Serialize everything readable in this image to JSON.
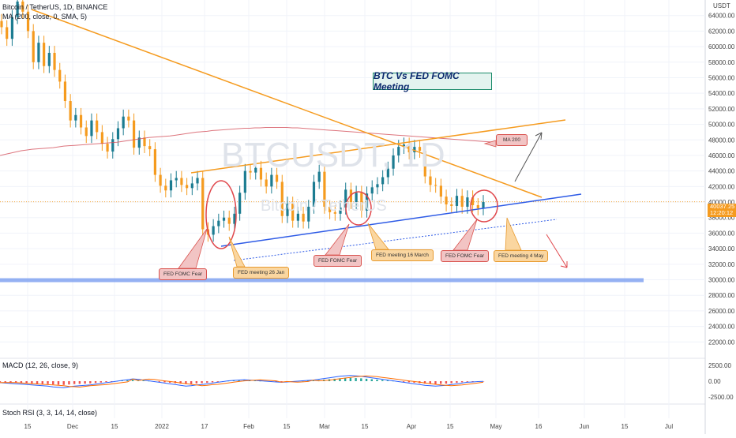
{
  "header": {
    "line1": "Bitcoin / TetherUS, 1D, BINANCE",
    "line2": "MA (200, close, 0, SMA, 5)"
  },
  "currency": "USDT",
  "watermark": {
    "big": "BTCUSDT, 1D",
    "small": "Bitcoin / TetherUS"
  },
  "title_box": "BTC Vs FED FOMC Meeting",
  "price_tag": {
    "line1": "40037.25",
    "line2": "12:20:12"
  },
  "annotations": {
    "ma200": "MA 200",
    "fed_fear_1": "FED FOMC Fear",
    "fed_meet_jan": "FED meeting 26 Jan",
    "fed_fear_2": "FED FOMC Fear",
    "fed_meet_mar": "FED meeting 16 March",
    "fed_fear_3": "FED FOMC Fear",
    "fed_meet_may": "FED meeting 4 May"
  },
  "macd": {
    "label": "MACD (12, 26, close, 9)",
    "ticks": [
      "2500.00",
      "0.00",
      "-2500.00"
    ]
  },
  "stoch": {
    "label": "Stoch RSI (3, 3, 14, 14, close)"
  },
  "chart_data": {
    "type": "candlestick",
    "title": "BTC Vs FED FOMC Meeting",
    "y_axis": {
      "unit": "USDT",
      "range": [
        20000,
        66000
      ],
      "ticks": [
        "64000.00",
        "62000.00",
        "60000.00",
        "58000.00",
        "56000.00",
        "54000.00",
        "52000.00",
        "50000.00",
        "48000.00",
        "46000.00",
        "44000.00",
        "42000.00",
        "40000.00",
        "38000.00",
        "36000.00",
        "34000.00",
        "32000.00",
        "30000.00",
        "28000.00",
        "26000.00",
        "24000.00",
        "22000.00"
      ]
    },
    "x_axis": {
      "ticks": [
        "15",
        "Dec",
        "15",
        "2022",
        "17",
        "Feb",
        "15",
        "Mar",
        "15",
        "Apr",
        "15",
        "May",
        "16",
        "Jun",
        "15",
        "Jul"
      ]
    },
    "close_prices": [
      62500,
      61000,
      63800,
      65800,
      64500,
      62000,
      58000,
      60500,
      57500,
      59200,
      57000,
      55500,
      53000,
      50500,
      51200,
      49600,
      48500,
      50500,
      49000,
      47500,
      46500,
      48100,
      49500,
      51000,
      50500,
      47000,
      48300,
      47200,
      46800,
      43500,
      42100,
      41500,
      42800,
      43100,
      42200,
      41800,
      42400,
      43100,
      36500,
      35800,
      36900,
      37600,
      38000,
      37200,
      38500,
      41200,
      44000,
      43800,
      44400,
      42900,
      42000,
      43500,
      42600,
      38200,
      39800,
      37600,
      38500,
      37500,
      39400,
      42600,
      43900,
      39400,
      38700,
      38500,
      39300,
      41600,
      40000,
      41200,
      38900,
      41100,
      41900,
      42300,
      43200,
      44300,
      46000,
      47100,
      47400,
      46400,
      47100,
      46600,
      43300,
      42200,
      42100,
      40700,
      39700,
      39500,
      40800,
      39400,
      40600,
      39600,
      39200,
      40000
    ],
    "ma200": [
      46000,
      46150,
      46300,
      46450,
      46600,
      46700,
      46800,
      46850,
      46900,
      46950,
      47000,
      47100,
      47200,
      47250,
      47300,
      47350,
      47400,
      47450,
      47500,
      47550,
      47600,
      47650,
      47700,
      47800,
      47900,
      48000,
      48100,
      48200,
      48300,
      48350,
      48400,
      48450,
      48500,
      48600,
      48700,
      48800,
      48900,
      49000,
      49050,
      49100,
      49200,
      49250,
      49300,
      49350,
      49400,
      49450,
      49500,
      49500,
      49550,
      49550,
      49600,
      49600,
      49600,
      49600,
      49600,
      49550,
      49550,
      49500,
      49450,
      49400,
      49350,
      49300,
      49250,
      49200,
      49150,
      49100,
      49050,
      49000,
      48950,
      48900,
      48850,
      48800,
      48750,
      48700,
      48650,
      48600,
      48550,
      48500,
      48450,
      48400,
      48350,
      48300,
      48250,
      48200,
      48150,
      48100,
      48050,
      48000,
      47950,
      47900,
      47850,
      47800
    ],
    "levels": {
      "support_zone": 30000,
      "current_price": 40037.25
    },
    "macd_hist": [
      -400,
      -500,
      -600,
      -700,
      -800,
      -900,
      -1000,
      -1100,
      -1200,
      -1300,
      -1500,
      -1600,
      -1700,
      -1500,
      -1300,
      -1200,
      -1100,
      -1000,
      -800,
      -600,
      -400,
      -200,
      0,
      200,
      400,
      600,
      500,
      300,
      100,
      -100,
      -300,
      -500,
      -700,
      -900,
      -1100,
      -1300,
      -1200,
      -1000,
      -900,
      -700,
      -500,
      -300,
      -100,
      100,
      200,
      300,
      400,
      300,
      200,
      100,
      0,
      -100,
      -200,
      -300,
      -200,
      -100,
      0,
      100,
      200,
      300,
      500,
      700,
      900,
      1100,
      1300,
      1400,
      1500,
      1400,
      1300,
      1100,
      900,
      700,
      500,
      300,
      100,
      -100,
      -300,
      -500,
      -700,
      -900,
      -1100,
      -1200,
      -1300,
      -1200,
      -1100,
      -900,
      -700,
      -500,
      -300,
      -200,
      -100,
      -50
    ]
  }
}
